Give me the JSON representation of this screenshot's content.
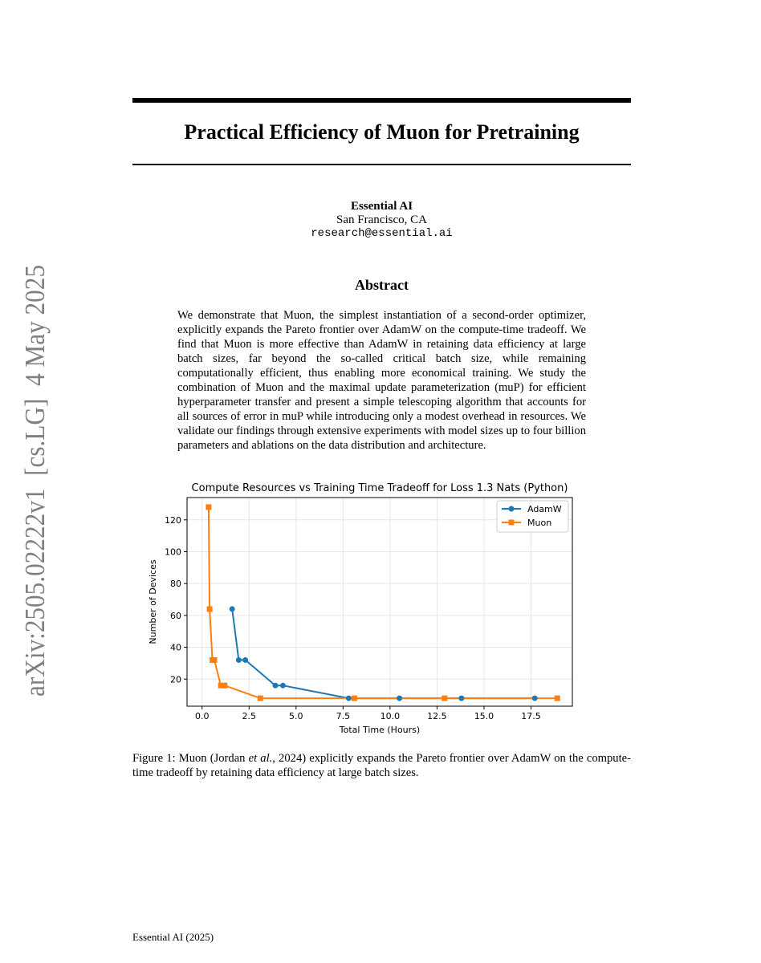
{
  "arxiv_id": "arXiv:2505.02222v1  [cs.LG]  4 May 2025",
  "title": "Practical Efficiency of Muon for Pretraining",
  "author": {
    "name": "Essential AI",
    "location": "San Francisco, CA",
    "email": "research@essential.ai"
  },
  "abstract_heading": "Abstract",
  "abstract": "We demonstrate that Muon, the simplest instantiation of a second-order optimizer, explicitly expands the Pareto frontier over AdamW on the compute-time tradeoff. We find that Muon is more effective than AdamW in retaining data efficiency at large batch sizes, far beyond the so-called critical batch size, while remaining computationally efficient, thus enabling more economical training. We study the combination of Muon and the maximal update parameterization (muP) for efficient hyperparameter transfer and present a simple telescoping algorithm that accounts for all sources of error in muP while introducing only a modest overhead in resources. We validate our findings through extensive experiments with model sizes up to four billion parameters and ablations on the data distribution and architecture.",
  "caption": {
    "label": "Figure 1: ",
    "before": "Muon (Jordan ",
    "italic": "et al.",
    "after": ", 2024) explicitly expands the Pareto frontier over AdamW on the compute-time tradeoff by retaining data efficiency at large batch sizes."
  },
  "footer": "Essential AI (2025)",
  "chart_data": {
    "type": "line",
    "title": "Compute Resources vs Training Time Tradeoff for Loss 1.3 Nats (Python)",
    "xlabel": "Total Time (Hours)",
    "ylabel": "Number of Devices",
    "xlim": [
      -0.8,
      19.7
    ],
    "ylim": [
      3,
      134
    ],
    "xticks": [
      0.0,
      2.5,
      5.0,
      7.5,
      10.0,
      12.5,
      15.0,
      17.5
    ],
    "xtick_labels": [
      "0.0",
      "2.5",
      "5.0",
      "7.5",
      "10.0",
      "12.5",
      "15.0",
      "17.5"
    ],
    "yticks": [
      20,
      40,
      60,
      80,
      100,
      120
    ],
    "ytick_labels": [
      "20",
      "40",
      "60",
      "80",
      "100",
      "120"
    ],
    "grid": true,
    "legend_position": "top-right",
    "series": [
      {
        "name": "AdamW",
        "color": "#1f77b4",
        "marker": "circle",
        "x": [
          1.6,
          1.95,
          2.3,
          3.9,
          4.3,
          7.8,
          10.5,
          13.8,
          17.7
        ],
        "y": [
          64,
          32,
          32,
          16,
          16,
          8,
          8,
          8,
          8
        ]
      },
      {
        "name": "Muon",
        "color": "#ff7f0e",
        "marker": "square",
        "x": [
          0.35,
          0.4,
          0.55,
          0.65,
          1.0,
          1.2,
          3.1,
          8.1,
          12.9,
          18.9
        ],
        "y": [
          128,
          64,
          32,
          32,
          16,
          16,
          8,
          8,
          8,
          8
        ]
      }
    ]
  }
}
